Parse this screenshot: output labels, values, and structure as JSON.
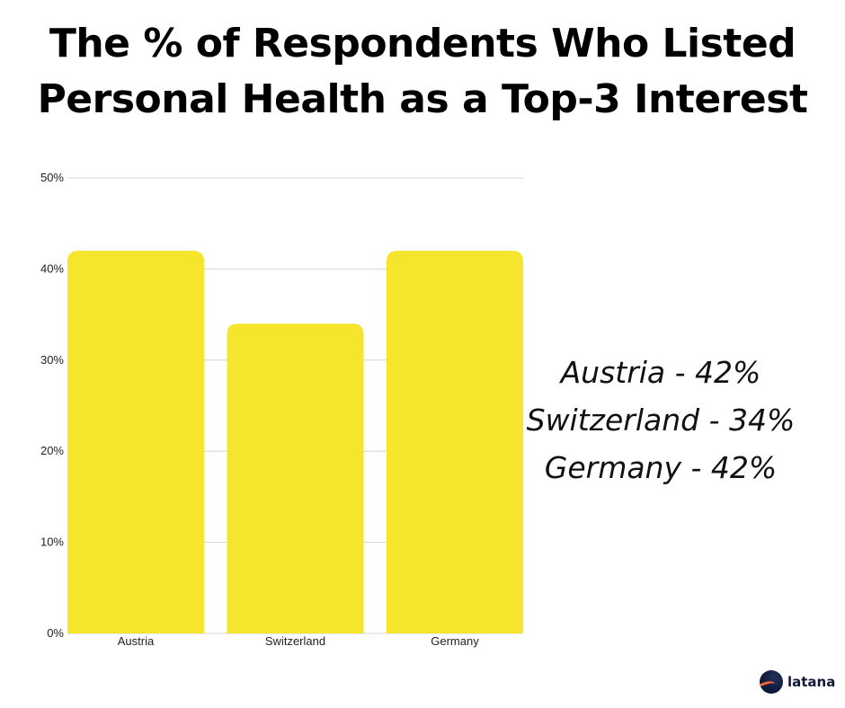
{
  "title": {
    "line1": "The % of Respondents Who Listed",
    "line2": "Personal Health as a Top-3 Interest"
  },
  "chart_data": {
    "type": "bar",
    "categories": [
      "Austria",
      "Switzerland",
      "Germany"
    ],
    "values": [
      42,
      34,
      42
    ],
    "ylim": [
      0,
      50
    ],
    "yticks": [
      "0%",
      "10%",
      "20%",
      "30%",
      "40%",
      "50%"
    ],
    "ytick_values": [
      0,
      10,
      20,
      30,
      40,
      50
    ],
    "grid": true,
    "bar_color": "#f5e52d",
    "xlabel": "",
    "ylabel": ""
  },
  "summary": [
    "Austria - 42%",
    "Switzerland - 34%",
    "Germany - 42%"
  ],
  "logo": {
    "text": "latana",
    "icon": "latana-logo-icon"
  }
}
